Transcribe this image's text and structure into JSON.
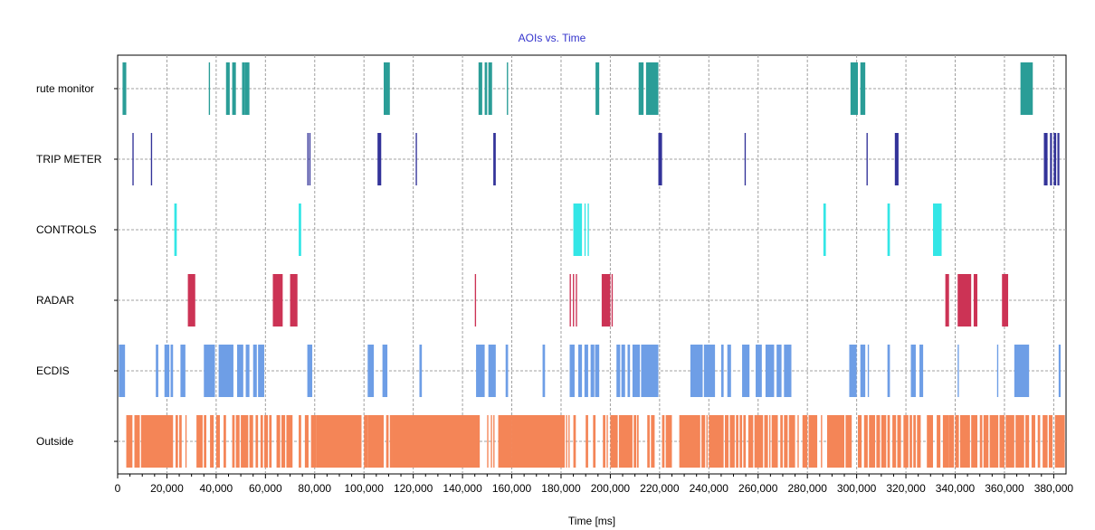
{
  "chart_data": {
    "type": "timeline",
    "title": "AOIs vs. Time",
    "xlabel": "Time [ms]",
    "ylabel": "",
    "xlim": [
      0,
      385000
    ],
    "x_ticks": [
      0,
      20000,
      40000,
      60000,
      80000,
      100000,
      120000,
      140000,
      160000,
      180000,
      200000,
      220000,
      240000,
      260000,
      280000,
      300000,
      320000,
      340000,
      360000,
      380000
    ],
    "x_tick_labels": [
      "0",
      "20,000",
      "40,000",
      "60,000",
      "80,000",
      "100,000",
      "120,000",
      "140,000",
      "160,000",
      "180,000",
      "200,000",
      "220,000",
      "240,000",
      "260,000",
      "280,000",
      "300,000",
      "320,000",
      "340,000",
      "360,000",
      "380,000"
    ],
    "grid": true,
    "legend": "none",
    "categories": [
      "rute monitor",
      "TRIP METER",
      "CONTROLS",
      "RADAR",
      "ECDIS",
      "Outside"
    ],
    "series": [
      {
        "name": "rute monitor",
        "color": "#2a9d97",
        "intervals": [
          [
            2000,
            3500
          ],
          [
            37000,
            37500
          ],
          [
            44000,
            45500
          ],
          [
            46500,
            48000
          ],
          [
            50500,
            51500
          ],
          [
            51500,
            53500
          ],
          [
            108000,
            110500
          ],
          [
            146500,
            148000
          ],
          [
            149000,
            150000
          ],
          [
            150500,
            152000
          ],
          [
            158000,
            158500
          ],
          [
            194000,
            195500
          ],
          [
            211500,
            213500
          ],
          [
            214500,
            219500
          ],
          [
            297500,
            300500
          ],
          [
            301500,
            303500
          ],
          [
            366500,
            371500
          ]
        ]
      },
      {
        "name": "TRIP METER",
        "color": "#333399",
        "intervals": [
          [
            6000,
            6500
          ],
          [
            13500,
            14000
          ],
          [
            77000,
            77500
          ],
          [
            77800,
            78300
          ],
          [
            105500,
            107000
          ],
          [
            121000,
            121500
          ],
          [
            152500,
            153500
          ],
          [
            219500,
            221000
          ],
          [
            254500,
            255000
          ],
          [
            304000,
            304500
          ],
          [
            315500,
            317000
          ],
          [
            376000,
            377500
          ],
          [
            378500,
            379300
          ],
          [
            380000,
            381000
          ],
          [
            381500,
            382300
          ]
        ]
      },
      {
        "name": "CONTROLS",
        "color": "#33e6e6",
        "intervals": [
          [
            23000,
            24000
          ],
          [
            73500,
            74500
          ],
          [
            185000,
            188500
          ],
          [
            189500,
            190000
          ],
          [
            190800,
            191300
          ],
          [
            286500,
            287500
          ],
          [
            312500,
            313500
          ],
          [
            331000,
            334500
          ]
        ]
      },
      {
        "name": "RADAR",
        "color": "#cc3355",
        "intervals": [
          [
            28500,
            31500
          ],
          [
            63000,
            67000
          ],
          [
            70000,
            73000
          ],
          [
            145000,
            145500
          ],
          [
            183500,
            184000
          ],
          [
            184800,
            185300
          ],
          [
            186000,
            186500
          ],
          [
            196500,
            200000
          ],
          [
            200500,
            201000
          ],
          [
            336000,
            337500
          ],
          [
            341000,
            346500
          ],
          [
            347500,
            349000
          ],
          [
            359000,
            361500
          ]
        ]
      },
      {
        "name": "ECDIS",
        "color": "#6e9ee6",
        "intervals": [
          [
            500,
            3000
          ],
          [
            15500,
            16500
          ],
          [
            19000,
            21000
          ],
          [
            21500,
            22500
          ],
          [
            25500,
            27500
          ],
          [
            35000,
            39500
          ],
          [
            41000,
            47000
          ],
          [
            48500,
            51000
          ],
          [
            52000,
            53500
          ],
          [
            55000,
            56500
          ],
          [
            57000,
            59500
          ],
          [
            77000,
            79000
          ],
          [
            101500,
            104000
          ],
          [
            107500,
            109500
          ],
          [
            122500,
            123500
          ],
          [
            145500,
            149000
          ],
          [
            150500,
            153500
          ],
          [
            157500,
            158500
          ],
          [
            172500,
            173500
          ],
          [
            183500,
            185500
          ],
          [
            187000,
            188500
          ],
          [
            189500,
            191000
          ],
          [
            192000,
            193500
          ],
          [
            193800,
            195500
          ],
          [
            202500,
            204000
          ],
          [
            204500,
            206000
          ],
          [
            207000,
            208000
          ],
          [
            209000,
            212000
          ],
          [
            212500,
            219500
          ],
          [
            232500,
            237500
          ],
          [
            238000,
            242500
          ],
          [
            245000,
            246000
          ],
          [
            247500,
            249000
          ],
          [
            253500,
            256500
          ],
          [
            259000,
            261500
          ],
          [
            263000,
            266500
          ],
          [
            267500,
            269500
          ],
          [
            270500,
            273500
          ],
          [
            297000,
            300000
          ],
          [
            301500,
            303500
          ],
          [
            304500,
            305000
          ],
          [
            312500,
            313500
          ],
          [
            322000,
            324000
          ],
          [
            325500,
            327000
          ],
          [
            341000,
            341500
          ],
          [
            357000,
            357500
          ],
          [
            364000,
            370000
          ],
          [
            382000,
            382800
          ]
        ]
      },
      {
        "name": "Outside",
        "color": "#f48557",
        "intervals": [
          [
            3500,
            6000
          ],
          [
            6800,
            9000
          ],
          [
            9500,
            22500
          ],
          [
            23500,
            24500
          ],
          [
            25000,
            26000
          ],
          [
            27500,
            28000
          ],
          [
            32000,
            34500
          ],
          [
            35000,
            36000
          ],
          [
            37500,
            39000
          ],
          [
            40000,
            41500
          ],
          [
            43000,
            44000
          ],
          [
            46500,
            47500
          ],
          [
            48000,
            49500
          ],
          [
            50000,
            53000
          ],
          [
            53500,
            55000
          ],
          [
            56000,
            57000
          ],
          [
            58000,
            59000
          ],
          [
            59500,
            61000
          ],
          [
            61500,
            62500
          ],
          [
            64500,
            66000
          ],
          [
            66500,
            68000
          ],
          [
            68500,
            71000
          ],
          [
            73500,
            74500
          ],
          [
            76000,
            77500
          ],
          [
            78500,
            80500
          ],
          [
            80500,
            99000
          ],
          [
            100000,
            101500
          ],
          [
            101500,
            108000
          ],
          [
            109000,
            110000
          ],
          [
            110500,
            111500
          ],
          [
            111500,
            147000
          ],
          [
            150000,
            150500
          ],
          [
            151500,
            152000
          ],
          [
            152500,
            153000
          ],
          [
            154500,
            160000
          ],
          [
            160000,
            181500
          ],
          [
            182000,
            182500
          ],
          [
            183000,
            183500
          ],
          [
            185000,
            186000
          ],
          [
            190000,
            191000
          ],
          [
            193000,
            194000
          ],
          [
            197000,
            198000
          ],
          [
            198500,
            199000
          ],
          [
            200000,
            203000
          ],
          [
            203500,
            209000
          ],
          [
            209500,
            210500
          ],
          [
            210800,
            211500
          ],
          [
            215000,
            216000
          ],
          [
            216500,
            218000
          ],
          [
            221000,
            222000
          ],
          [
            222500,
            225000
          ],
          [
            228000,
            236500
          ],
          [
            237000,
            238500
          ],
          [
            239000,
            239500
          ],
          [
            240000,
            246000
          ],
          [
            246500,
            248000
          ],
          [
            248500,
            250500
          ],
          [
            251000,
            252000
          ],
          [
            252500,
            253500
          ],
          [
            254000,
            255000
          ],
          [
            256000,
            258000
          ],
          [
            258500,
            262000
          ],
          [
            262500,
            264000
          ],
          [
            264500,
            265000
          ],
          [
            265500,
            268000
          ],
          [
            269000,
            270000
          ],
          [
            270500,
            272000
          ],
          [
            272500,
            275000
          ],
          [
            276000,
            276500
          ],
          [
            278000,
            280000
          ],
          [
            280500,
            284000
          ],
          [
            285500,
            286000
          ],
          [
            288000,
            295000
          ],
          [
            295500,
            298000
          ],
          [
            300500,
            302000
          ],
          [
            303000,
            304500
          ],
          [
            305000,
            307500
          ],
          [
            308000,
            309500
          ],
          [
            310000,
            312000
          ],
          [
            312500,
            313500
          ],
          [
            314500,
            316000
          ],
          [
            316500,
            318000
          ],
          [
            319000,
            321000
          ],
          [
            321500,
            322500
          ],
          [
            323000,
            324000
          ],
          [
            324500,
            326000
          ],
          [
            328500,
            331000
          ],
          [
            332500,
            334000
          ],
          [
            335000,
            337500
          ],
          [
            337500,
            339500
          ],
          [
            340000,
            341500
          ],
          [
            342000,
            346000
          ],
          [
            346500,
            349000
          ],
          [
            350000,
            351000
          ],
          [
            351500,
            353500
          ],
          [
            354000,
            357500
          ],
          [
            358000,
            360000
          ],
          [
            360500,
            364000
          ],
          [
            364500,
            368000
          ],
          [
            368500,
            370000
          ],
          [
            371000,
            372500
          ],
          [
            373500,
            374500
          ],
          [
            375500,
            377500
          ],
          [
            378000,
            379500
          ],
          [
            380500,
            384500
          ]
        ]
      }
    ]
  }
}
